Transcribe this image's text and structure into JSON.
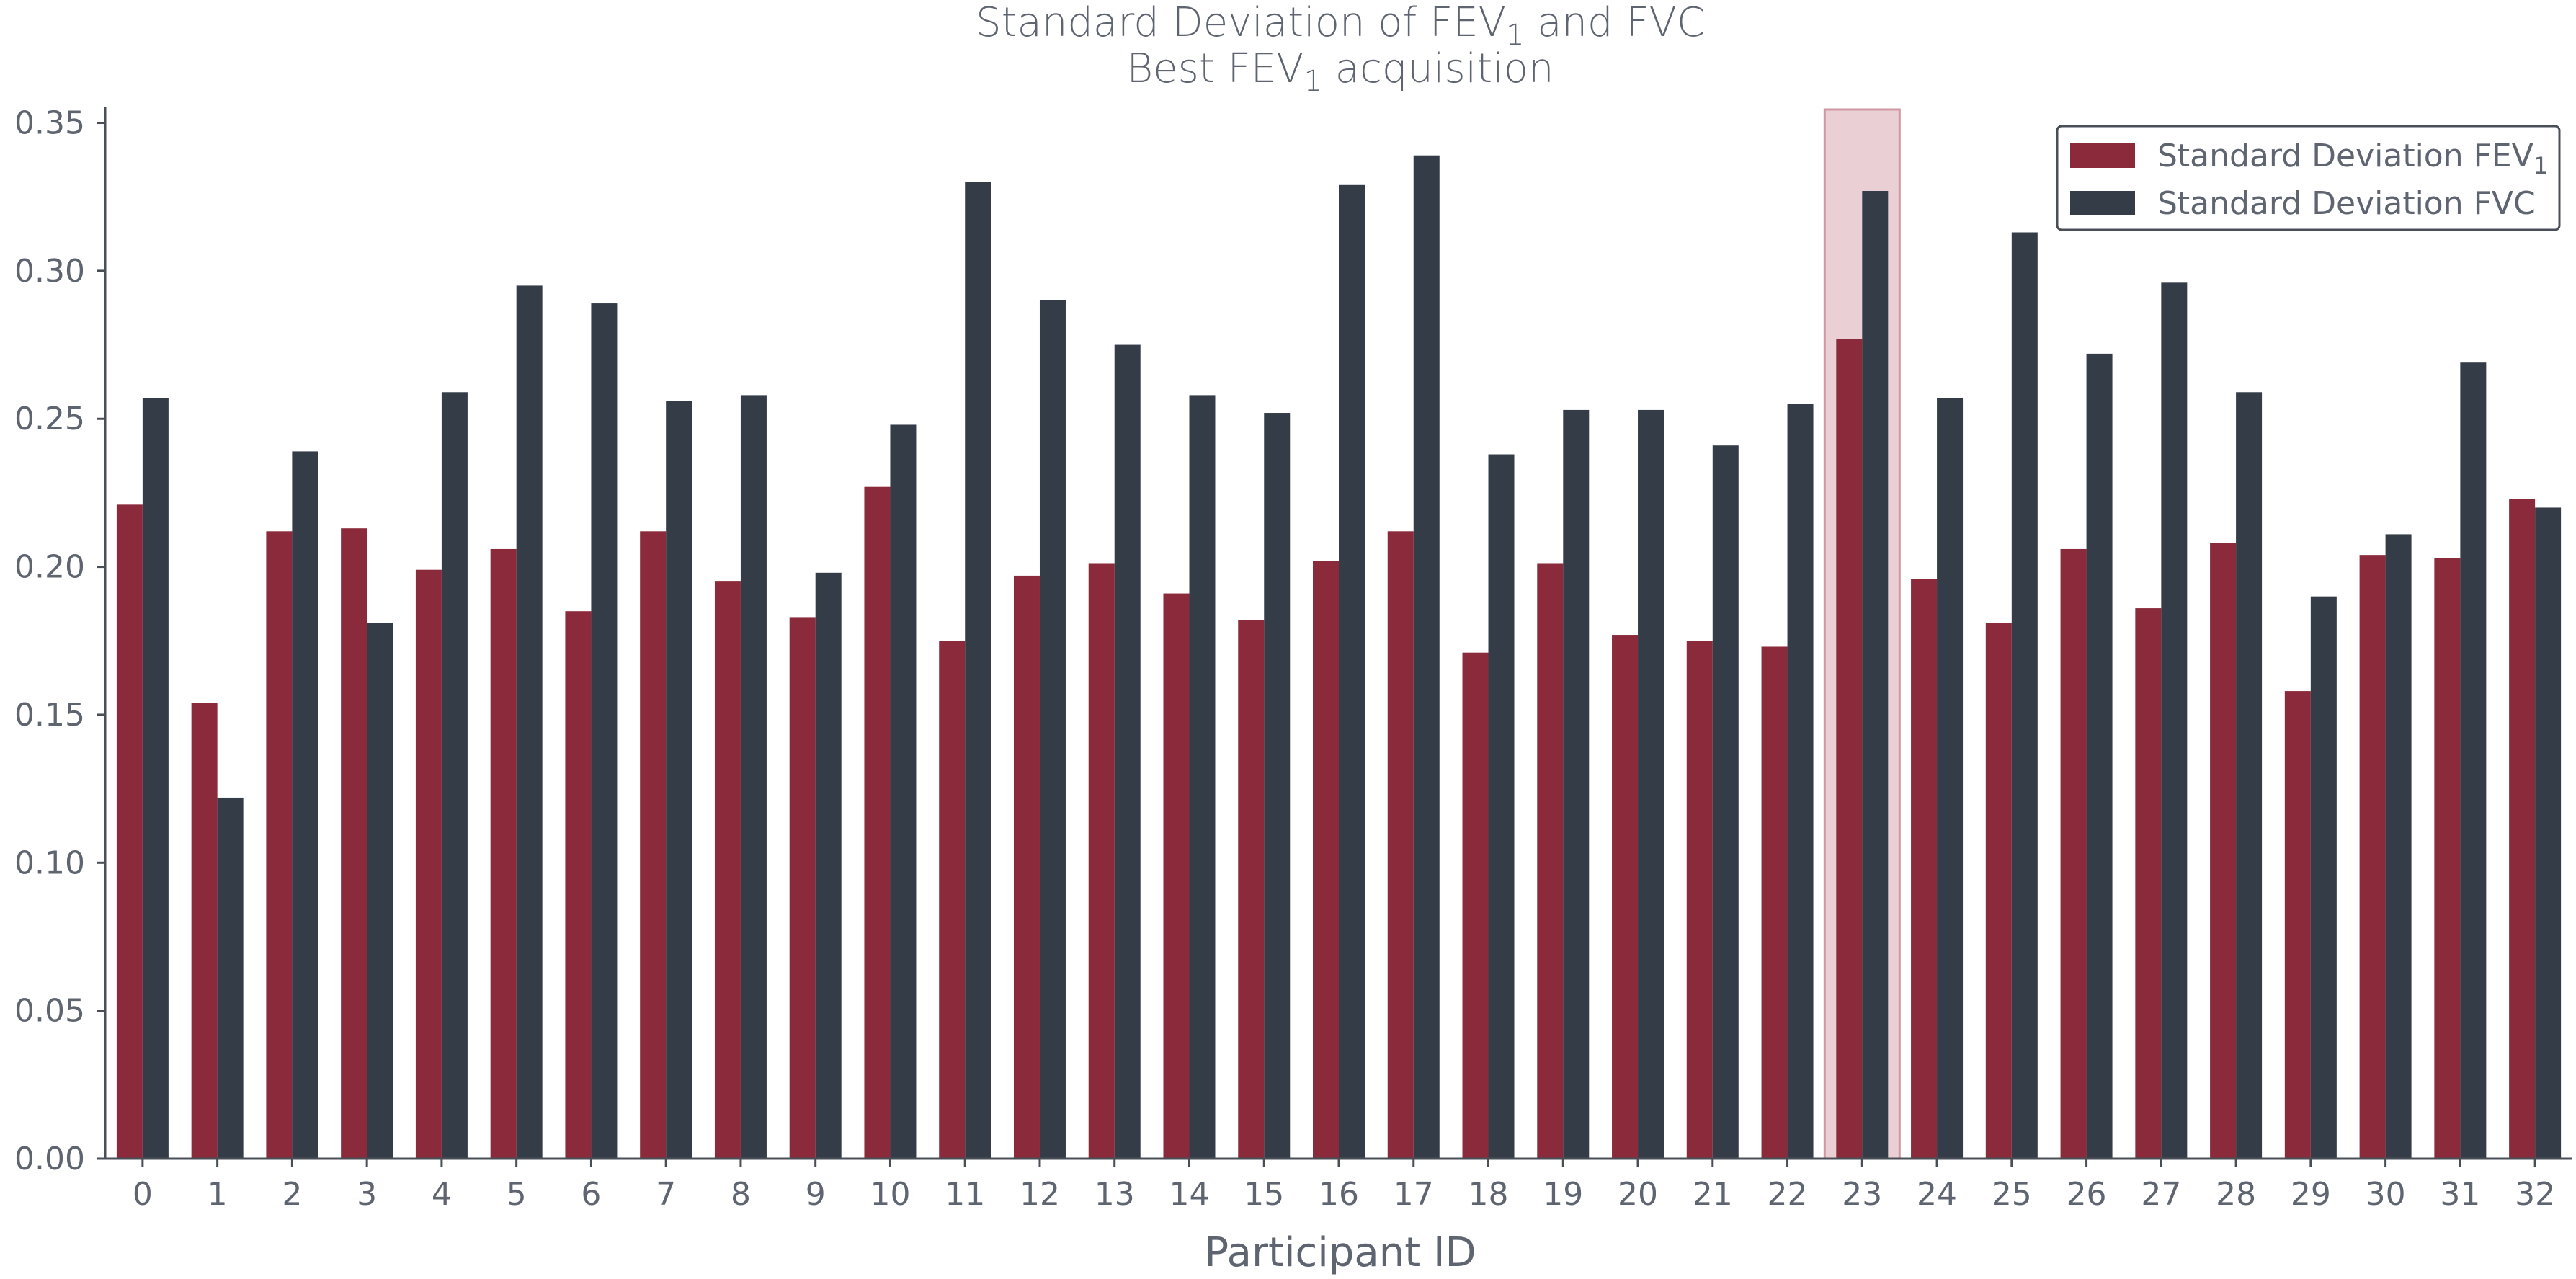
{
  "chart_data": {
    "type": "bar",
    "title": {
      "line1_prefix": "Standard Deviation of FEV",
      "line1_sub": "1",
      "line1_suffix": " and FVC",
      "line2_prefix": "Best FEV",
      "line2_sub": "1",
      "line2_suffix": " acquisition"
    },
    "xlabel": "Participant ID",
    "ylabel": "",
    "ylim": [
      0,
      0.355
    ],
    "yticks": [
      "0.00",
      "0.05",
      "0.10",
      "0.15",
      "0.20",
      "0.25",
      "0.30",
      "0.35"
    ],
    "ytick_values": [
      0,
      0.05,
      0.1,
      0.15,
      0.2,
      0.25,
      0.3,
      0.35
    ],
    "categories": [
      "0",
      "1",
      "2",
      "3",
      "4",
      "5",
      "6",
      "7",
      "8",
      "9",
      "10",
      "11",
      "12",
      "13",
      "14",
      "15",
      "16",
      "17",
      "18",
      "19",
      "20",
      "21",
      "22",
      "23",
      "24",
      "25",
      "26",
      "27",
      "28",
      "29",
      "30",
      "31",
      "32"
    ],
    "series": [
      {
        "name": "Standard Deviation FEV1",
        "legend_prefix": "Standard Deviation FEV",
        "legend_sub": "1",
        "color": "#8b2a3a",
        "values": [
          0.221,
          0.154,
          0.212,
          0.213,
          0.199,
          0.206,
          0.185,
          0.212,
          0.195,
          0.183,
          0.227,
          0.175,
          0.197,
          0.201,
          0.191,
          0.182,
          0.202,
          0.212,
          0.171,
          0.201,
          0.177,
          0.175,
          0.173,
          0.277,
          0.196,
          0.181,
          0.206,
          0.186,
          0.208,
          0.158,
          0.204,
          0.203,
          0.223
        ]
      },
      {
        "name": "Standard Deviation FVC",
        "legend_prefix": "Standard Deviation FVC",
        "legend_sub": "",
        "color": "#343d47",
        "values": [
          0.257,
          0.122,
          0.239,
          0.181,
          0.259,
          0.295,
          0.289,
          0.256,
          0.258,
          0.198,
          0.248,
          0.33,
          0.29,
          0.275,
          0.258,
          0.252,
          0.329,
          0.339,
          0.238,
          0.253,
          0.253,
          0.241,
          0.255,
          0.327,
          0.257,
          0.313,
          0.272,
          0.296,
          0.259,
          0.19,
          0.211,
          0.269,
          0.22
        ]
      }
    ],
    "highlight": {
      "category": "23",
      "color": "#d8a9b1"
    },
    "legend_position": "top-right",
    "grid": false
  }
}
